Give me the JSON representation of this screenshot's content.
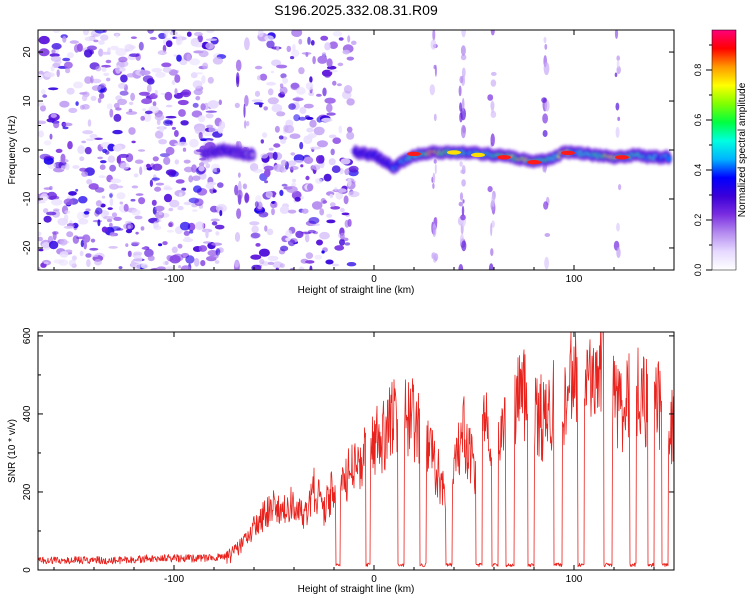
{
  "figure_title": "S196.2025.332.08.31.R09",
  "chart_data": [
    {
      "type": "heatmap",
      "xlabel": "Height of straight line (km)",
      "ylabel": "Frequency (Hz)",
      "xlim": [
        -168,
        150
      ],
      "ylim": [
        -24.5,
        24.5
      ],
      "xticks": [
        -100,
        0,
        100
      ],
      "xtick_labels": [
        "-100",
        "0",
        "100"
      ],
      "yticks": [
        -20,
        -10,
        0,
        10,
        20
      ],
      "ytick_labels": [
        "-20",
        "-10",
        "0",
        "10",
        "20"
      ],
      "colorbar": {
        "label": "Normalized spectral amplitude",
        "range": [
          0.0,
          0.96
        ],
        "ticks": [
          0.0,
          0.2,
          0.4,
          0.6,
          0.8
        ],
        "tick_labels": [
          "0.0",
          "0.2",
          "0.4",
          "0.6",
          "0.8"
        ],
        "colors": [
          "#ffffff",
          "#e6d9ff",
          "#b58cf0",
          "#7a2ee0",
          "#3b00d8",
          "#0000ff",
          "#00b4ff",
          "#00ffe0",
          "#00ff40",
          "#80ff00",
          "#ffff00",
          "#ff9a00",
          "#ff0000",
          "#ff007a"
        ]
      },
      "noise_regions": [
        {
          "x_start": -168,
          "x_end": -76,
          "density": 1.0
        },
        {
          "x_start": -60,
          "x_end": -10,
          "density": 0.9
        }
      ],
      "carrier_track": {
        "x": [
          -85,
          -75,
          -62,
          -10,
          0,
          10,
          20,
          30,
          40,
          50,
          60,
          70,
          80,
          90,
          95,
          100,
          110,
          120,
          130,
          140,
          148
        ],
        "freq": [
          -0.5,
          0,
          -1,
          -0.5,
          -1,
          -3.5,
          -1,
          -0.5,
          -0.5,
          -0.5,
          -1,
          -1.5,
          -2.5,
          -1.5,
          -0.5,
          -0.5,
          -1,
          -1.5,
          -1,
          -1.5,
          -1.5
        ],
        "amplitude": [
          0.25,
          0.3,
          0.2,
          0.3,
          0.35,
          0.4,
          0.55,
          0.85,
          0.55,
          0.5,
          0.55,
          0.75,
          0.7,
          0.5,
          0.8,
          0.5,
          0.55,
          0.75,
          0.55,
          0.5,
          0.45
        ]
      }
    },
    {
      "type": "line",
      "xlabel": "Height of straight line (km)",
      "ylabel": "SNR (10 * v/v)",
      "xlim": [
        -168,
        150
      ],
      "ylim": [
        0,
        610
      ],
      "xticks": [
        -100,
        0,
        100
      ],
      "xtick_labels": [
        "-100",
        "0",
        "100"
      ],
      "yticks": [
        0,
        200,
        400,
        600
      ],
      "ytick_labels": [
        "0",
        "200",
        "400",
        "600"
      ],
      "color": "#e8231e",
      "series": [
        {
          "name": "SNR",
          "x": [
            -168,
            -150,
            -130,
            -110,
            -90,
            -80,
            -72,
            -65,
            -60,
            -55,
            -50,
            -45,
            -40,
            -35,
            -30,
            -25,
            -20,
            -15,
            -10,
            -5,
            0,
            5,
            10,
            15,
            20,
            25,
            30,
            35,
            40,
            45,
            50,
            55,
            60,
            65,
            70,
            75,
            80,
            85,
            90,
            95,
            100,
            105,
            110,
            115,
            120,
            125,
            130,
            135,
            140,
            145,
            150
          ],
          "y": [
            25,
            25,
            25,
            30,
            30,
            32,
            35,
            70,
            110,
            140,
            170,
            150,
            180,
            130,
            210,
            150,
            220,
            230,
            260,
            300,
            320,
            350,
            400,
            420,
            380,
            340,
            280,
            200,
            270,
            350,
            250,
            360,
            370,
            360,
            420,
            450,
            420,
            380,
            430,
            400,
            530,
            440,
            480,
            600,
            420,
            420,
            470,
            430,
            460,
            380,
            370
          ]
        }
      ],
      "dropouts": [
        [
          -19,
          -17
        ],
        [
          -4,
          -2
        ],
        [
          12,
          15
        ],
        [
          23,
          26
        ],
        [
          36,
          39
        ],
        [
          51,
          54
        ],
        [
          59,
          62
        ],
        [
          66,
          70
        ],
        [
          77,
          80
        ],
        [
          90,
          94
        ],
        [
          102,
          105
        ],
        [
          115,
          119
        ],
        [
          128,
          131
        ],
        [
          137,
          140
        ],
        [
          144,
          147
        ]
      ]
    }
  ]
}
